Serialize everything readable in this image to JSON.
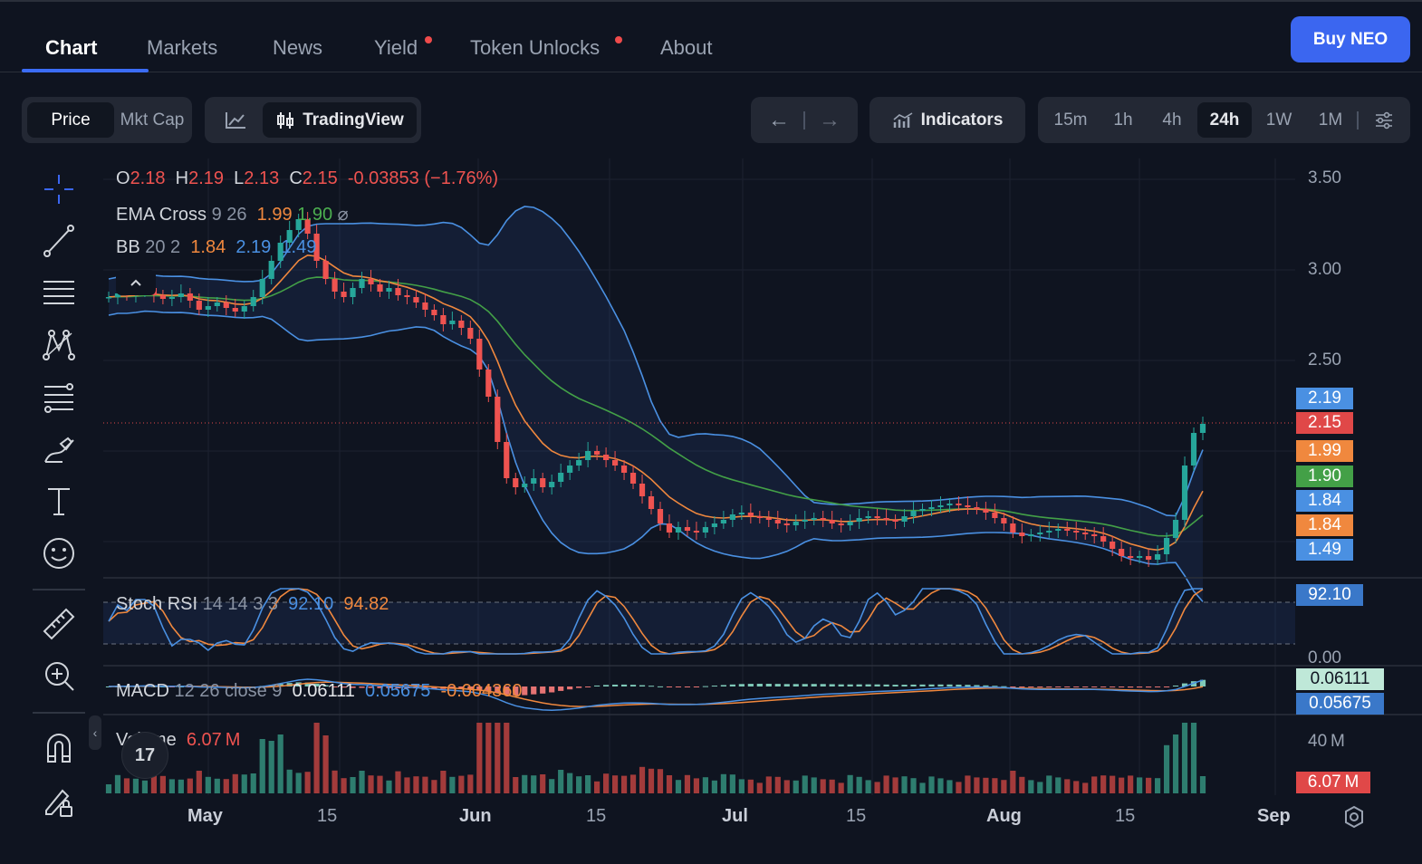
{
  "nav": {
    "tabs": [
      "Chart",
      "Markets",
      "News",
      "Yield",
      "Token Unlocks",
      "About"
    ],
    "buy_label": "Buy NEO"
  },
  "toolbar": {
    "price_label": "Price",
    "mktcap_label": "Mkt Cap",
    "tradingview_label": "TradingView",
    "indicators_label": "Indicators",
    "timeframes": [
      "15m",
      "1h",
      "4h",
      "24h",
      "1W",
      "1M"
    ],
    "active_timeframe": "24h"
  },
  "legend": {
    "o_label": "O",
    "o_val": "2.18",
    "h_label": "H",
    "h_val": "2.19",
    "l_label": "L",
    "l_val": "2.13",
    "c_label": "C",
    "c_val": "2.15",
    "change": "-0.03853 (−1.76%)",
    "ema_label": "EMA Cross",
    "ema_params": "9 26",
    "ema_fast": "1.99",
    "ema_slow": "1.90",
    "ema_icon": "⌀",
    "bb_label": "BB",
    "bb_params": "20 2",
    "bb_mid": "1.84",
    "bb_upper": "2.19",
    "bb_lower": "1.49",
    "stoch_label": "Stoch RSI",
    "stoch_params": "14 14 3 3",
    "stoch_k": "92.10",
    "stoch_d": "94.82",
    "macd_label": "MACD",
    "macd_params": "12 26 close 9",
    "macd_hist": "0.06111",
    "macd_line": "0.05675",
    "macd_signal": "-0.004360",
    "vol_label": "Volume",
    "vol_val": "6.07 M"
  },
  "price_axis": [
    "3.50",
    "3.00",
    "2.50"
  ],
  "price_tags": [
    {
      "text": "2.19",
      "color": "#4a90e2"
    },
    {
      "text": "2.15",
      "color": "#e04848"
    },
    {
      "text": "1.99",
      "color": "#f0883e"
    },
    {
      "text": "1.90",
      "color": "#43a047"
    },
    {
      "text": "1.84",
      "color": "#4a90e2"
    },
    {
      "text": "1.84",
      "color": "#f0883e"
    },
    {
      "text": "1.49",
      "color": "#4a90e2"
    }
  ],
  "stoch_tag": "92.10",
  "stoch_axis": "0.00",
  "macd_tags": [
    "0.06111",
    "0.05675"
  ],
  "vol_axis": "40 M",
  "vol_tag": "6.07 M",
  "time_axis": [
    "May",
    "15",
    "Jun",
    "15",
    "Jul",
    "15",
    "Aug",
    "15",
    "Sep"
  ],
  "colors": {
    "up": "#26a69a",
    "down": "#ef5350",
    "accent": "#3b66f0",
    "bb": "#4a90e2",
    "ema_fast": "#f0883e",
    "ema_slow": "#43a047"
  },
  "icons": [
    "crosshair-icon",
    "trendline-icon",
    "horizontal-lines-icon",
    "pattern-icon",
    "fib-icon",
    "brush-icon",
    "text-icon",
    "emoji-icon",
    "ruler-icon",
    "zoom-in-icon",
    "magnet-icon",
    "lock-drawing-icon",
    "settings-gear-icon",
    "tradingview-logo-icon"
  ],
  "chart_data": {
    "type": "candlestick",
    "title": "",
    "timeframe": "24h",
    "date_labels": [
      "May",
      "15",
      "Jun",
      "15",
      "Jul",
      "15",
      "Aug",
      "15",
      "Sep"
    ],
    "ylim": [
      1.3,
      3.6
    ],
    "close": [
      2.85,
      2.87,
      2.86,
      2.88,
      2.9,
      2.86,
      2.84,
      2.85,
      2.87,
      2.83,
      2.78,
      2.8,
      2.82,
      2.79,
      2.77,
      2.8,
      2.85,
      2.95,
      3.05,
      3.15,
      3.22,
      3.28,
      3.2,
      3.05,
      2.95,
      2.88,
      2.85,
      2.9,
      2.95,
      2.92,
      2.88,
      2.9,
      2.86,
      2.85,
      2.82,
      2.78,
      2.75,
      2.7,
      2.72,
      2.68,
      2.62,
      2.45,
      2.3,
      2.05,
      1.85,
      1.8,
      1.82,
      1.85,
      1.8,
      1.83,
      1.88,
      1.92,
      1.95,
      2.0,
      1.98,
      1.95,
      1.92,
      1.88,
      1.82,
      1.75,
      1.68,
      1.6,
      1.55,
      1.58,
      1.56,
      1.55,
      1.58,
      1.6,
      1.62,
      1.65,
      1.66,
      1.64,
      1.63,
      1.62,
      1.6,
      1.59,
      1.61,
      1.62,
      1.63,
      1.62,
      1.6,
      1.59,
      1.61,
      1.63,
      1.64,
      1.63,
      1.62,
      1.61,
      1.64,
      1.67,
      1.68,
      1.69,
      1.7,
      1.71,
      1.7,
      1.69,
      1.68,
      1.66,
      1.63,
      1.6,
      1.55,
      1.53,
      1.54,
      1.55,
      1.56,
      1.57,
      1.56,
      1.55,
      1.54,
      1.53,
      1.5,
      1.46,
      1.42,
      1.41,
      1.42,
      1.4,
      1.43,
      1.52,
      1.62,
      1.92,
      2.1,
      2.15
    ],
    "ema_cross": {
      "periods": [
        9,
        26
      ],
      "fast_last": 1.99,
      "slow_last": 1.9
    },
    "bollinger": {
      "period": 20,
      "mult": 2,
      "mid_last": 1.84,
      "upper_last": 2.19,
      "lower_last": 1.49
    },
    "stoch_rsi": {
      "params": [
        14,
        14,
        3,
        3
      ],
      "k_last": 92.1,
      "d_last": 94.82
    },
    "macd": {
      "params": [
        12,
        26,
        9
      ],
      "hist_last": 0.06111,
      "macd_last": 0.05675,
      "signal_last": -0.00436
    },
    "volume_last": "6.07 M",
    "volume_scale": [
      0,
      40
    ]
  }
}
